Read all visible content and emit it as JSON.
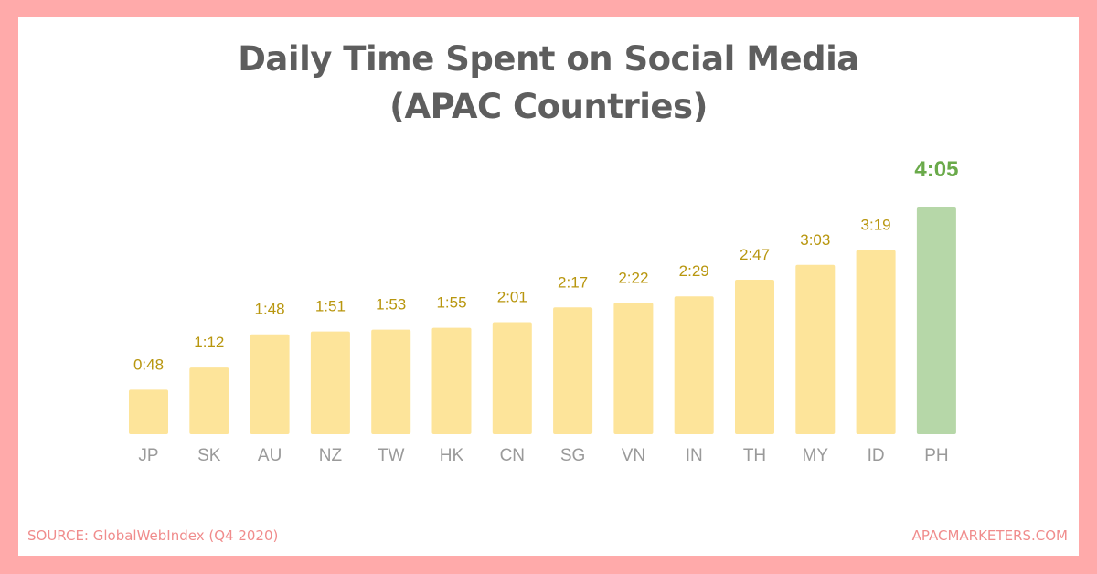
{
  "chart_data": {
    "type": "bar",
    "title": [
      "Daily Time Spent on Social Media",
      "(APAC Countries)"
    ],
    "categories": [
      "JP",
      "SK",
      "AU",
      "NZ",
      "TW",
      "HK",
      "CN",
      "SG",
      "VN",
      "IN",
      "TH",
      "MY",
      "ID",
      "PH"
    ],
    "values": [
      48,
      72,
      108,
      111,
      113,
      115,
      121,
      137,
      142,
      149,
      167,
      183,
      199,
      245
    ],
    "labels": [
      "0:48",
      "1:12",
      "1:48",
      "1:51",
      "1:53",
      "1:55",
      "2:01",
      "2:17",
      "2:22",
      "2:29",
      "2:47",
      "3:03",
      "3:19",
      "4:05"
    ],
    "unit": "minutes per day",
    "highlight": "PH",
    "colors": {
      "bar": "#fde49a",
      "highlight": "#b6d7a8",
      "label": "#b8960e",
      "highlight_label": "#6aaa4a",
      "tick": "#9a9a9a"
    },
    "xlabel": "",
    "ylabel": "",
    "ylim": [
      0,
      245
    ],
    "grid": false
  },
  "footer": {
    "source": "SOURCE: GlobalWebIndex (Q4 2020)",
    "brand": "APACMARKETERS.COM"
  }
}
